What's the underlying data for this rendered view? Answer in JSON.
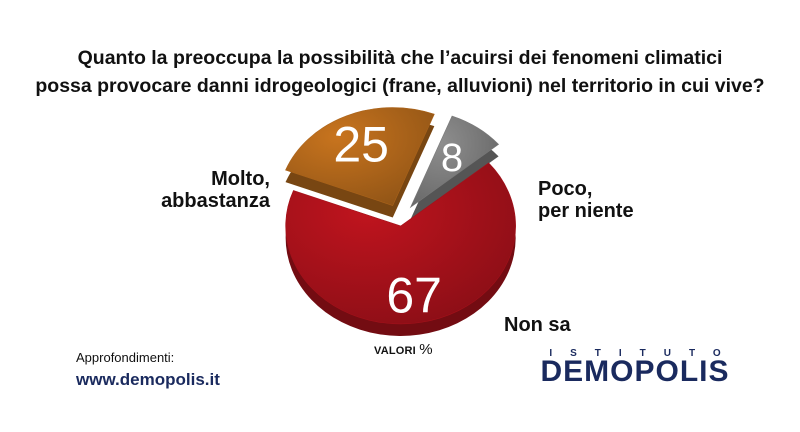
{
  "title_lines": [
    "Quanto la preoccupa la possibilità che l’acuirsi dei fenomeni climatici",
    "possa provocare danni idrogeologici (frane, alluvioni) nel territorio in cui vive?"
  ],
  "values_note": "VALORI",
  "values_unit": "%",
  "footer": {
    "approfondimenti": "Approfondimenti:",
    "website": "www.demopolis.it"
  },
  "logo": {
    "top": "ISTITUTO",
    "name": "DEMOPOLIS"
  },
  "chart_data": {
    "type": "pie",
    "unit": "%",
    "slices": [
      {
        "label_lines": [
          "Molto,",
          "abbastanza"
        ],
        "value": 67,
        "color": "#c0141e"
      },
      {
        "label_lines": [
          "Poco,",
          "per niente"
        ],
        "value": 25,
        "color": "#c8741e"
      },
      {
        "label_lines": [
          "Non sa"
        ],
        "value": 8,
        "color": "#8e8e8e"
      }
    ]
  }
}
